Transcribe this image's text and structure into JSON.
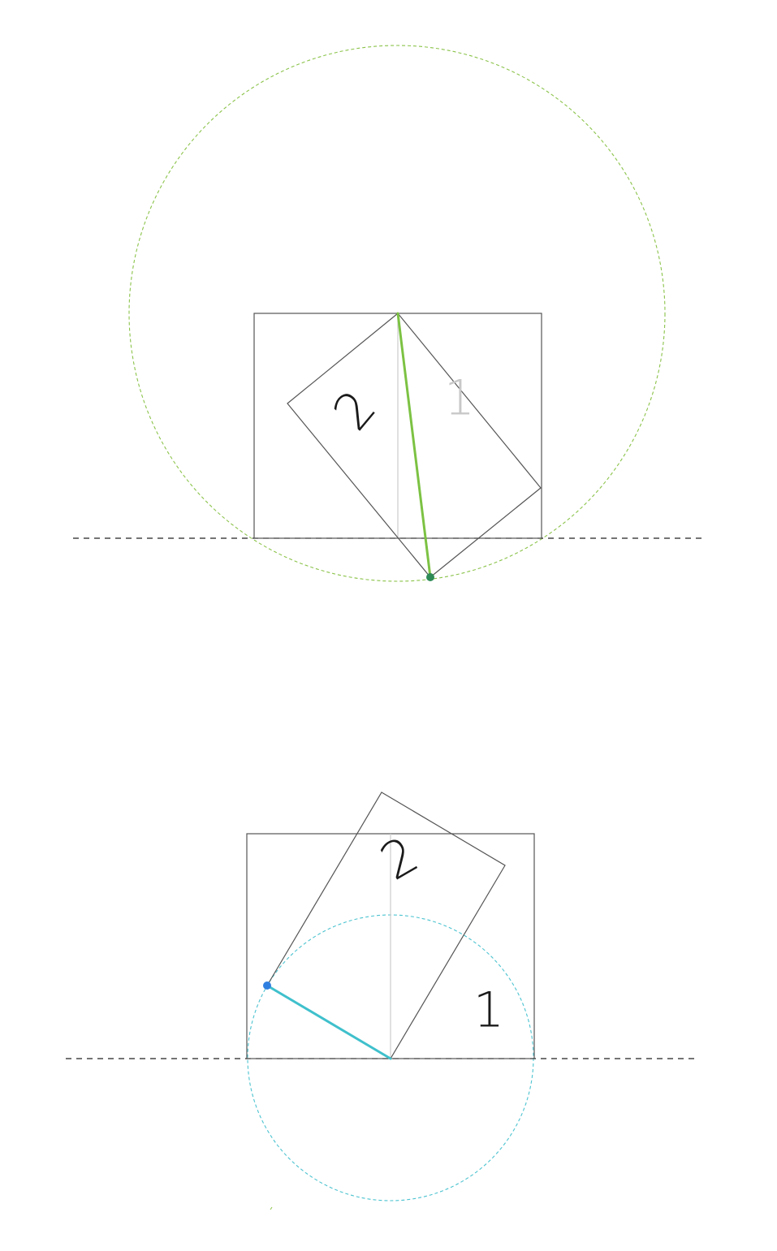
{
  "figures": [
    {
      "name": "top",
      "labels": {
        "one": "1",
        "two": "2"
      }
    },
    {
      "name": "bottom",
      "labels": {
        "one": "1",
        "two": "2"
      }
    }
  ],
  "colors": {
    "top_circle": "#8bc34a",
    "top_segment": "#7cc243",
    "top_point": "#2e8b57",
    "bottom_circle": "#4cc3d0",
    "bottom_segment": "#3fc0cc",
    "bottom_point": "#2f7fe0",
    "label_dark": "#1a1a1a",
    "label_light": "#c8c8c8"
  }
}
